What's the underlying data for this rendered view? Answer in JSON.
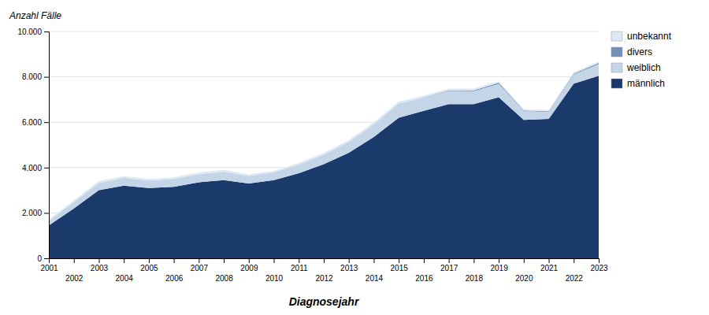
{
  "chart_data": {
    "type": "area",
    "stacked": true,
    "x_label": "Diagnosejahr",
    "y_label": "Anzahl Fälle",
    "x": [
      2001,
      2002,
      2003,
      2004,
      2005,
      2006,
      2007,
      2008,
      2009,
      2010,
      2011,
      2012,
      2013,
      2014,
      2015,
      2016,
      2017,
      2018,
      2019,
      2020,
      2021,
      2022,
      2023
    ],
    "series": [
      {
        "name": "männlich",
        "color": "#1a3a6b",
        "values": [
          1450,
          2200,
          3000,
          3200,
          3100,
          3150,
          3350,
          3450,
          3300,
          3450,
          3750,
          4150,
          4650,
          5350,
          6200,
          6500,
          6800,
          6800,
          7100,
          6100,
          6150,
          7700,
          8050
        ]
      },
      {
        "name": "weiblich",
        "color": "#c5d5e8",
        "values": [
          200,
          280,
          320,
          350,
          330,
          350,
          360,
          370,
          330,
          340,
          380,
          420,
          480,
          550,
          620,
          580,
          580,
          570,
          590,
          390,
          310,
          410,
          510
        ]
      },
      {
        "name": "divers",
        "color": "#7090b8",
        "values": [
          0,
          0,
          0,
          0,
          0,
          0,
          0,
          0,
          0,
          0,
          0,
          0,
          0,
          0,
          0,
          15,
          25,
          35,
          50,
          25,
          25,
          35,
          50
        ]
      },
      {
        "name": "unbekannt",
        "color": "#dde8f5",
        "values": [
          60,
          70,
          80,
          70,
          70,
          70,
          75,
          75,
          65,
          65,
          75,
          75,
          80,
          90,
          90,
          75,
          75,
          75,
          75,
          55,
          55,
          60,
          70
        ]
      }
    ],
    "xlim": [
      2001,
      2023
    ],
    "xticks": [
      2001,
      2002,
      2003,
      2004,
      2005,
      2006,
      2007,
      2008,
      2009,
      2010,
      2011,
      2012,
      2013,
      2014,
      2015,
      2016,
      2017,
      2018,
      2019,
      2020,
      2021,
      2022,
      2023
    ],
    "ylim": [
      0,
      10000
    ],
    "yticks": [
      0,
      {
        "value": 2000,
        "label": "2.000"
      },
      {
        "value": 4000,
        "label": "4.000"
      },
      {
        "value": 6000,
        "label": "6.000"
      },
      {
        "value": 8000,
        "label": "8.000"
      },
      {
        "value": 10000,
        "label": "10.000"
      }
    ],
    "grid": true,
    "legend": "top-right"
  }
}
